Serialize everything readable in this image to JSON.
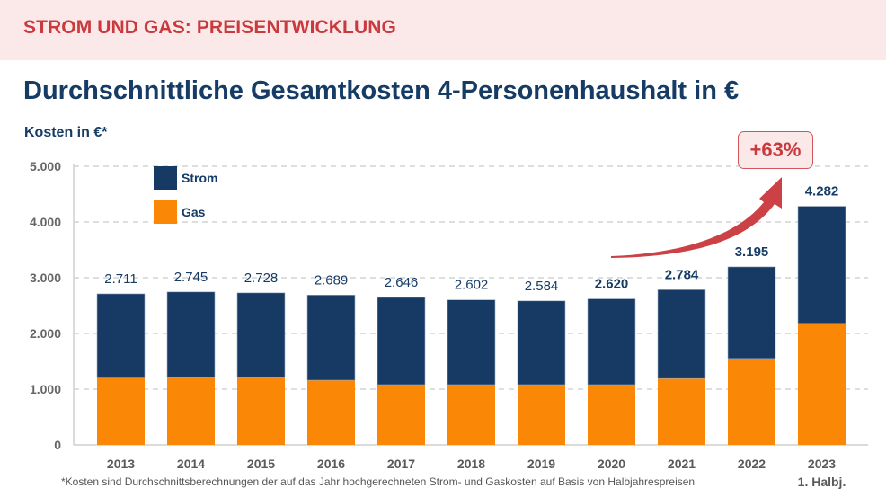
{
  "header": {
    "kicker": "STROM UND GAS: PREISENTWICKLUNG",
    "title": "Durchschnittliche Gesamtkosten 4-Personenhaushalt in €"
  },
  "badge": {
    "text": "+63%"
  },
  "footnote": "*Kosten sind Durchschnittsberechnungen der auf das Jahr hochgerechneten Strom- und Gaskosten auf Basis von Halbjahrespreisen",
  "colors": {
    "strom": "#163a63",
    "gas": "#fb8706",
    "accent": "#c9393d",
    "grid": "#bdbdbd"
  },
  "chart_data": {
    "type": "bar",
    "stacked": true,
    "title": "Durchschnittliche Gesamtkosten 4-Personenhaushalt in €",
    "ylabel": "Kosten in €*",
    "xlabel": "",
    "ylim": [
      0,
      5000
    ],
    "yticks": [
      0,
      1000,
      2000,
      3000,
      4000,
      5000
    ],
    "ytick_labels": [
      "0",
      "1.000",
      "2.000",
      "3.000",
      "4.000",
      "5.000"
    ],
    "grid": true,
    "legend": {
      "placement": "top-left",
      "entries": [
        "Strom",
        "Gas"
      ]
    },
    "categories": [
      "2013",
      "2014",
      "2015",
      "2016",
      "2017",
      "2018",
      "2019",
      "2020",
      "2021",
      "2022",
      "2023"
    ],
    "category_sublabels": [
      "",
      "",
      "",
      "",
      "",
      "",
      "",
      "",
      "",
      "",
      "1. Halbj."
    ],
    "series": [
      {
        "name": "Gas",
        "values": [
          1200,
          1210,
          1210,
          1160,
          1080,
          1080,
          1080,
          1080,
          1190,
          1550,
          2180
        ]
      },
      {
        "name": "Strom",
        "values": [
          1511,
          1535,
          1518,
          1529,
          1566,
          1522,
          1504,
          1540,
          1594,
          1645,
          2102
        ]
      }
    ],
    "totals": [
      2711,
      2745,
      2728,
      2689,
      2646,
      2602,
      2584,
      2620,
      2784,
      3195,
      4282
    ],
    "total_labels": [
      "2.711",
      "2.745",
      "2.728",
      "2.689",
      "2.646",
      "2.602",
      "2.584",
      "2.620",
      "2.784",
      "3.195",
      "4.282"
    ],
    "total_label_bold": [
      false,
      false,
      false,
      false,
      false,
      false,
      false,
      true,
      true,
      true,
      true
    ],
    "annotations": [
      {
        "text": "+63%",
        "type": "growth-arrow",
        "from": "2020",
        "to": "2023"
      }
    ]
  }
}
